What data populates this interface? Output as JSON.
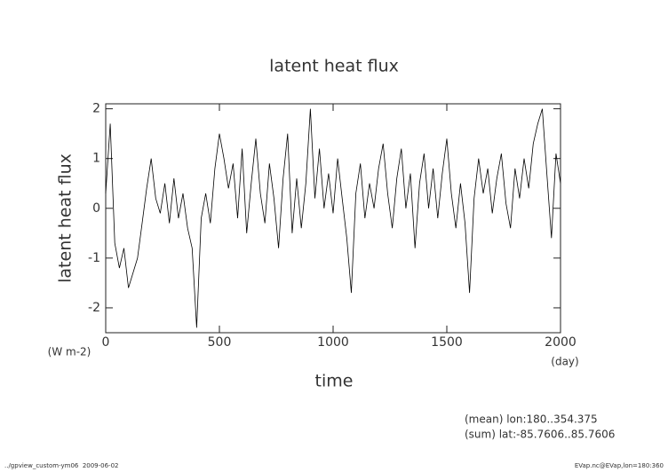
{
  "chart_data": {
    "type": "line",
    "title": "latent heat flux",
    "x_label": "time",
    "x_unit": "(day)",
    "y_label": "latent heat flux",
    "y_unit": "(W m-2)",
    "annotations": [
      "(mean) lon:180..354.375",
      "(sum) lat:-85.7606..85.7606"
    ],
    "footer": [
      "../gpview_custom-ym06  2009-06-02",
      "EVap.nc@EVap,lon=180:360"
    ],
    "xlim": [
      0,
      2000
    ],
    "xticks": [
      0,
      500,
      1000,
      1500,
      2000
    ],
    "ylim": [
      -2.5,
      2.1
    ],
    "yticks": [
      -2,
      -1,
      0,
      1,
      2
    ],
    "color": "#000000",
    "x": [
      0,
      20,
      40,
      60,
      80,
      100,
      120,
      140,
      160,
      180,
      200,
      220,
      240,
      260,
      280,
      300,
      320,
      340,
      360,
      380,
      400,
      420,
      440,
      460,
      480,
      500,
      520,
      540,
      560,
      580,
      600,
      620,
      640,
      660,
      680,
      700,
      720,
      740,
      760,
      780,
      800,
      820,
      840,
      860,
      880,
      900,
      920,
      940,
      960,
      980,
      1000,
      1020,
      1040,
      1060,
      1080,
      1100,
      1120,
      1140,
      1160,
      1180,
      1200,
      1220,
      1240,
      1260,
      1280,
      1300,
      1320,
      1340,
      1360,
      1380,
      1400,
      1420,
      1440,
      1460,
      1480,
      1500,
      1520,
      1540,
      1560,
      1580,
      1600,
      1620,
      1640,
      1660,
      1680,
      1700,
      1720,
      1740,
      1760,
      1780,
      1800,
      1820,
      1840,
      1860,
      1880,
      1900,
      1920,
      1940,
      1960,
      1980,
      2000
    ],
    "values": [
      0.3,
      1.7,
      -0.7,
      -1.2,
      -0.8,
      -1.6,
      -1.3,
      -1.0,
      -0.3,
      0.4,
      1.0,
      0.2,
      -0.1,
      0.5,
      -0.3,
      0.6,
      -0.2,
      0.3,
      -0.4,
      -0.8,
      -2.4,
      -0.2,
      0.3,
      -0.3,
      0.8,
      1.5,
      1.0,
      0.4,
      0.9,
      -0.2,
      1.2,
      -0.5,
      0.5,
      1.4,
      0.3,
      -0.3,
      0.9,
      0.2,
      -0.8,
      0.6,
      1.5,
      -0.5,
      0.6,
      -0.4,
      0.5,
      2.0,
      0.2,
      1.2,
      0.0,
      0.7,
      -0.1,
      1.0,
      0.2,
      -0.6,
      -1.7,
      0.3,
      0.9,
      -0.2,
      0.5,
      0.0,
      0.8,
      1.3,
      0.3,
      -0.4,
      0.6,
      1.2,
      0.0,
      0.7,
      -0.8,
      0.5,
      1.1,
      0.0,
      0.8,
      -0.2,
      0.7,
      1.4,
      0.3,
      -0.4,
      0.5,
      -0.3,
      -1.7,
      0.2,
      1.0,
      0.3,
      0.8,
      -0.1,
      0.6,
      1.1,
      0.1,
      -0.4,
      0.8,
      0.2,
      1.0,
      0.4,
      1.3,
      1.7,
      2.0,
      0.7,
      -0.6,
      1.1,
      0.5
    ]
  }
}
